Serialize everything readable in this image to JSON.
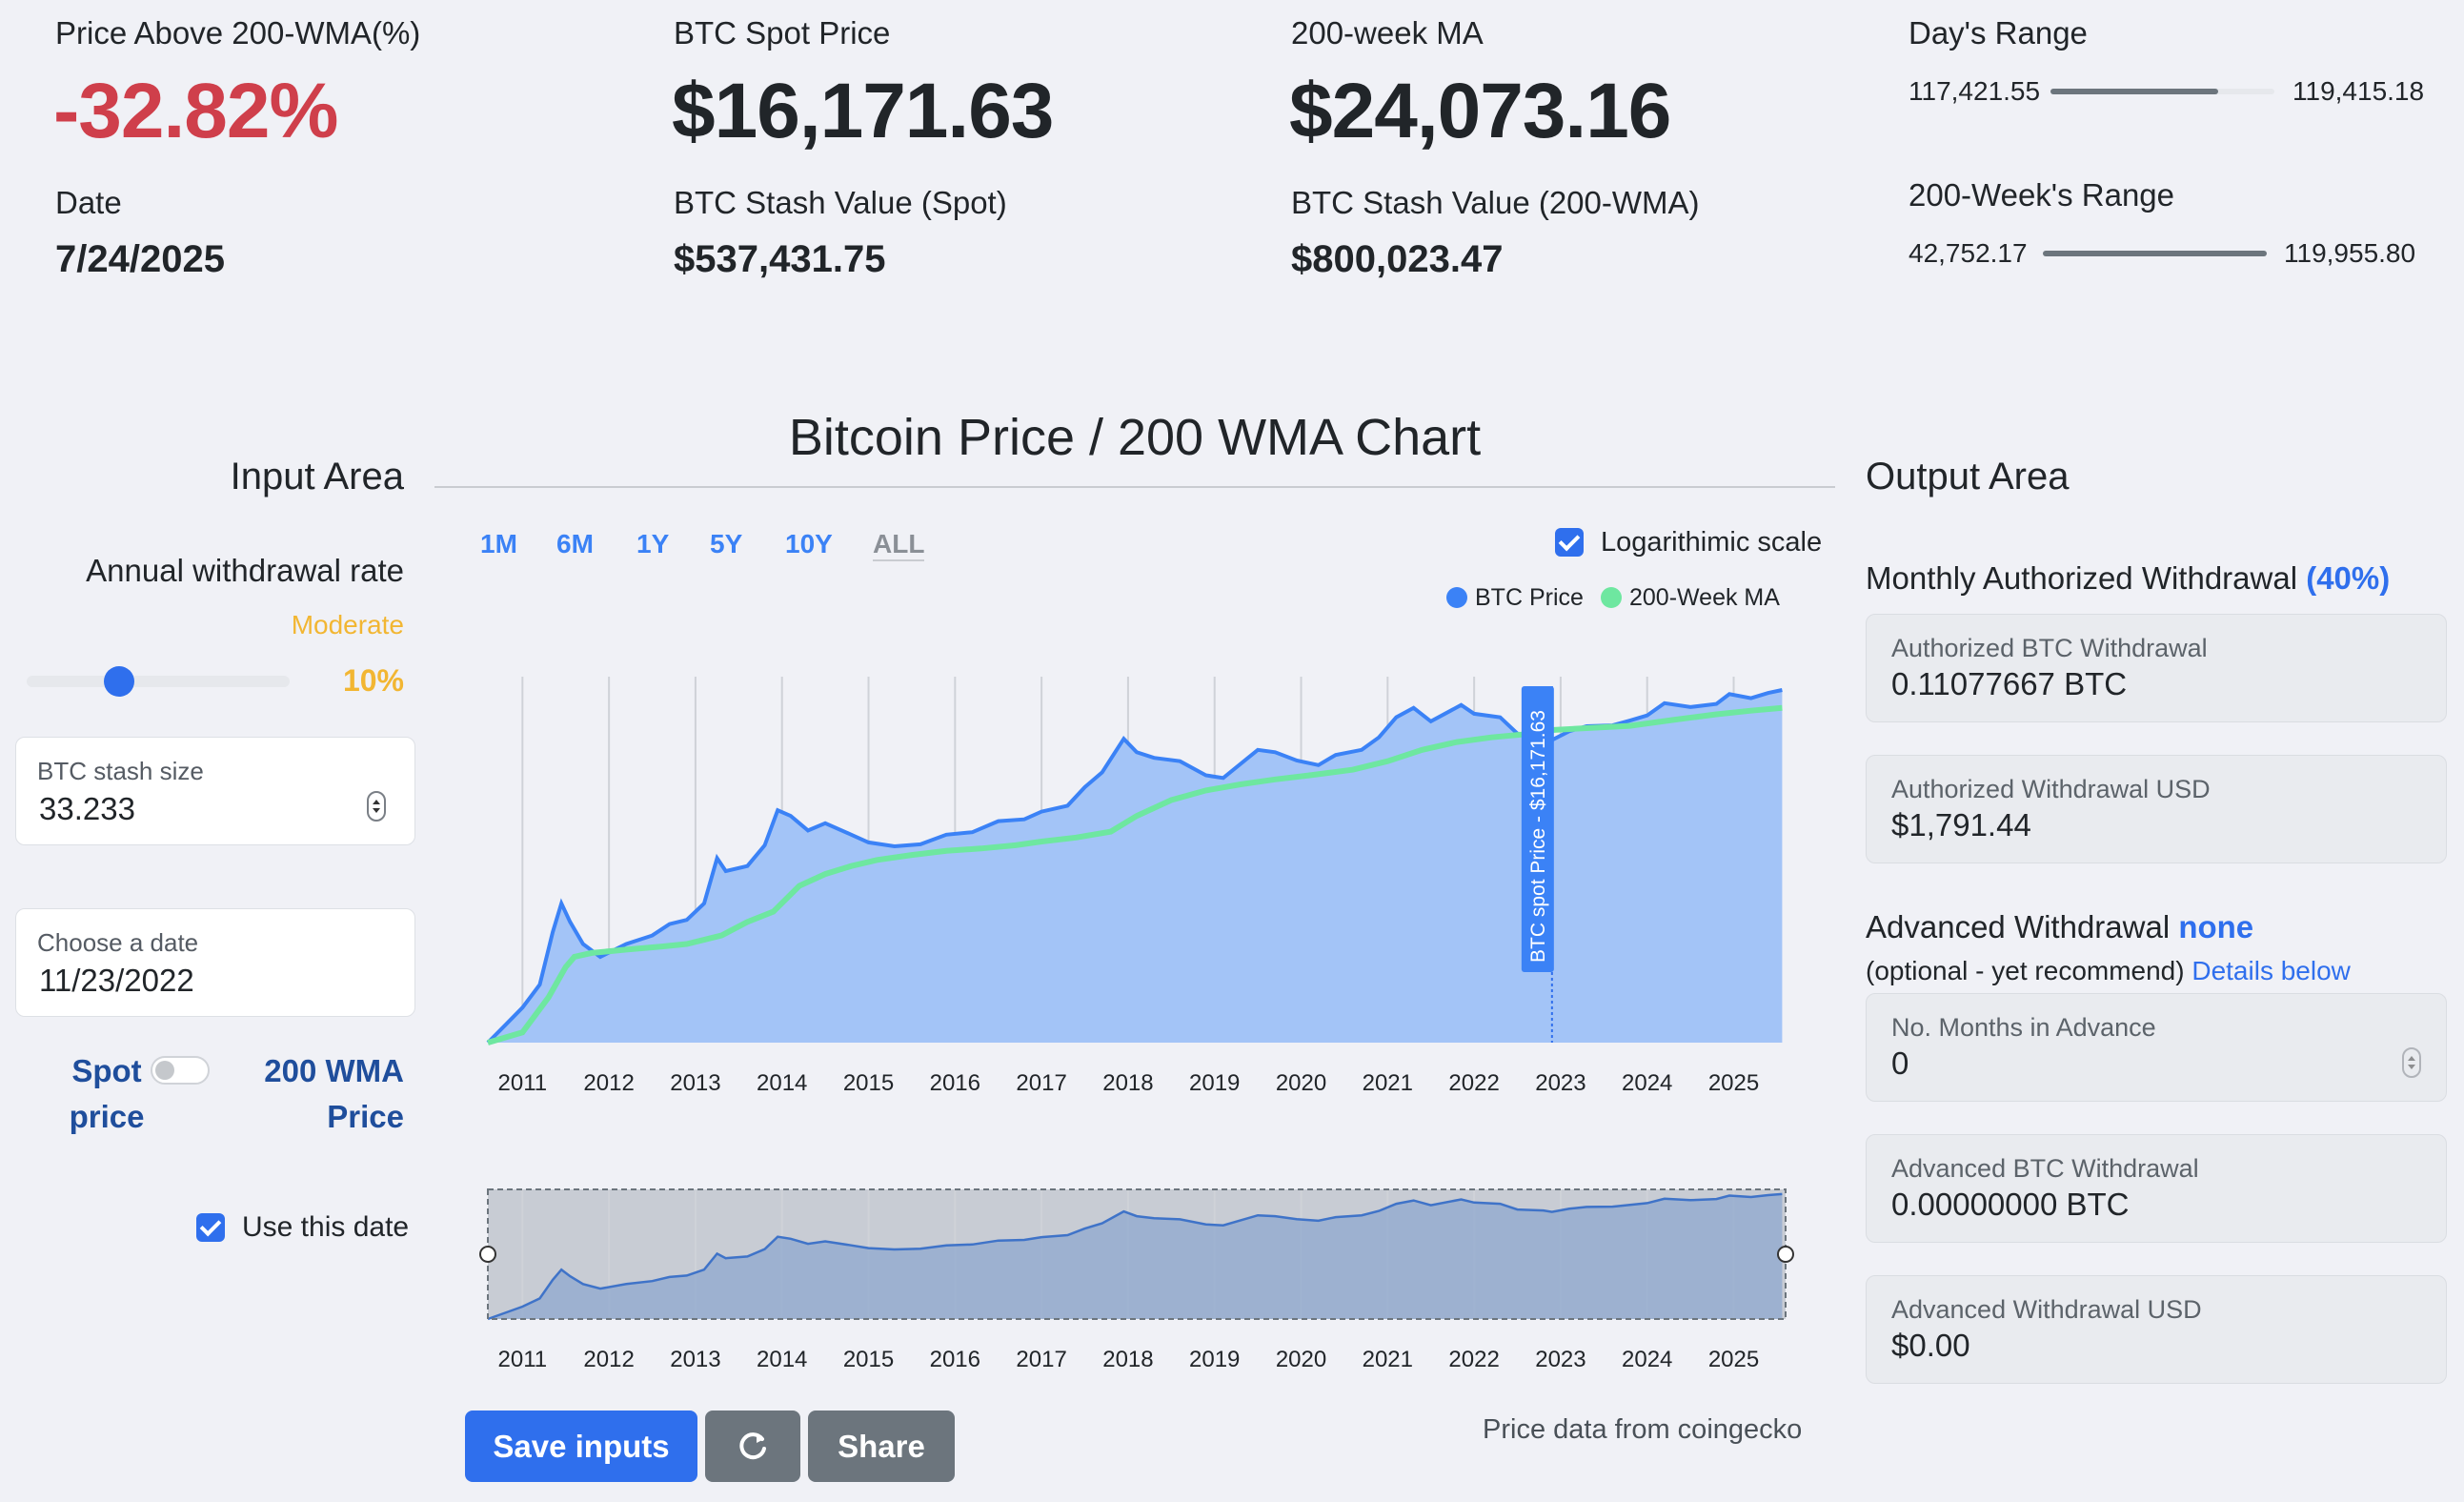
{
  "stats": {
    "price_above_label": "Price Above 200-WMA(%)",
    "price_above_value": "-32.82%",
    "date_label": "Date",
    "date_value": "7/24/2025",
    "spot_label": "BTC Spot Price",
    "spot_value": "$16,171.63",
    "stash_spot_label": "BTC Stash Value (Spot)",
    "stash_spot_value": "$537,431.75",
    "wma_label": "200-week MA",
    "wma_value": "$24,073.16",
    "stash_wma_label": "BTC Stash Value (200-WMA)",
    "stash_wma_value": "$800,023.47",
    "days_range_label": "Day's Range",
    "days_range_low": "117,421.55",
    "days_range_high": "119,415.18",
    "days_range_fill": 0.75,
    "week_range_label": "200-Week's Range",
    "week_range_low": "42,752.17",
    "week_range_high": "119,955.80",
    "week_range_fill": 1.0
  },
  "input_area": {
    "title": "Input Area",
    "withdrawal_rate_label": "Annual withdrawal rate",
    "risk_label": "Moderate",
    "rate_value": "10%",
    "slider_fraction": 0.35,
    "stash_label": "BTC stash size",
    "stash_value": "33.233",
    "date_label": "Choose a date",
    "date_value": "11/23/2022",
    "toggle_left": "Spot price",
    "toggle_right": "200 WMA Price",
    "use_date_label": "Use this date",
    "use_date_checked": true
  },
  "chart_section": {
    "title": "Bitcoin Price / 200 WMA Chart",
    "tabs": [
      "1M",
      "6M",
      "1Y",
      "5Y",
      "10Y",
      "ALL"
    ],
    "active_tab": "ALL",
    "log_scale_label": "Logarithimic scale",
    "log_scale_checked": true,
    "legend_btc": "BTC Price",
    "legend_wma": "200-Week MA",
    "marker_label": "BTC spot Price - $16,171.63",
    "attribution": "Price data from coingecko",
    "colors": {
      "btc": "#3b82f6",
      "btc_fill": "#a3c4f7",
      "wma": "#6ee7a0",
      "accent": "#2f6fed"
    }
  },
  "chart_data": {
    "type": "area",
    "x_ticks": [
      "2011",
      "2012",
      "2013",
      "2014",
      "2015",
      "2016",
      "2017",
      "2018",
      "2019",
      "2020",
      "2021",
      "2022",
      "2023",
      "2024",
      "2025"
    ],
    "xlim": [
      2010.6,
      2025.6
    ],
    "log_scale": true,
    "ylim": [
      0.1,
      200000
    ],
    "series": [
      {
        "name": "BTC Price",
        "points": [
          [
            2010.6,
            0.1
          ],
          [
            2010.8,
            0.2
          ],
          [
            2011.0,
            0.4
          ],
          [
            2011.2,
            1
          ],
          [
            2011.35,
            8
          ],
          [
            2011.45,
            25
          ],
          [
            2011.55,
            12
          ],
          [
            2011.7,
            5
          ],
          [
            2011.9,
            3
          ],
          [
            2012.2,
            5
          ],
          [
            2012.5,
            7
          ],
          [
            2012.7,
            11
          ],
          [
            2012.9,
            13
          ],
          [
            2013.1,
            25
          ],
          [
            2013.25,
            150
          ],
          [
            2013.35,
            90
          ],
          [
            2013.6,
            110
          ],
          [
            2013.8,
            250
          ],
          [
            2013.95,
            1000
          ],
          [
            2014.1,
            800
          ],
          [
            2014.3,
            450
          ],
          [
            2014.5,
            600
          ],
          [
            2014.8,
            380
          ],
          [
            2015.0,
            280
          ],
          [
            2015.3,
            240
          ],
          [
            2015.6,
            260
          ],
          [
            2015.9,
            380
          ],
          [
            2016.2,
            420
          ],
          [
            2016.5,
            650
          ],
          [
            2016.8,
            700
          ],
          [
            2017.0,
            950
          ],
          [
            2017.3,
            1200
          ],
          [
            2017.5,
            2500
          ],
          [
            2017.7,
            4500
          ],
          [
            2017.95,
            17000
          ],
          [
            2018.1,
            10000
          ],
          [
            2018.3,
            8000
          ],
          [
            2018.6,
            7000
          ],
          [
            2018.9,
            4000
          ],
          [
            2019.1,
            3600
          ],
          [
            2019.5,
            11000
          ],
          [
            2019.7,
            10000
          ],
          [
            2019.95,
            7200
          ],
          [
            2020.2,
            6000
          ],
          [
            2020.4,
            9000
          ],
          [
            2020.7,
            11000
          ],
          [
            2020.9,
            18000
          ],
          [
            2021.1,
            40000
          ],
          [
            2021.3,
            58000
          ],
          [
            2021.5,
            34000
          ],
          [
            2021.85,
            65000
          ],
          [
            2022.0,
            46000
          ],
          [
            2022.3,
            40000
          ],
          [
            2022.5,
            21000
          ],
          [
            2022.8,
            19000
          ],
          [
            2022.9,
            16200
          ],
          [
            2023.1,
            23000
          ],
          [
            2023.3,
            28000
          ],
          [
            2023.6,
            29000
          ],
          [
            2023.8,
            35000
          ],
          [
            2024.0,
            43000
          ],
          [
            2024.2,
            70000
          ],
          [
            2024.5,
            60000
          ],
          [
            2024.8,
            68000
          ],
          [
            2024.95,
            100000
          ],
          [
            2025.2,
            85000
          ],
          [
            2025.4,
            105000
          ],
          [
            2025.56,
            118000
          ]
        ]
      },
      {
        "name": "200-Week MA",
        "points": [
          [
            2010.6,
            0.1
          ],
          [
            2011.0,
            0.15
          ],
          [
            2011.3,
            0.6
          ],
          [
            2011.5,
            2
          ],
          [
            2011.6,
            3
          ],
          [
            2011.8,
            3.5
          ],
          [
            2012.2,
            4
          ],
          [
            2012.6,
            4.5
          ],
          [
            2012.9,
            5
          ],
          [
            2013.3,
            7
          ],
          [
            2013.6,
            12
          ],
          [
            2013.9,
            18
          ],
          [
            2014.2,
            50
          ],
          [
            2014.5,
            80
          ],
          [
            2014.8,
            110
          ],
          [
            2015.1,
            140
          ],
          [
            2015.5,
            170
          ],
          [
            2015.9,
            200
          ],
          [
            2016.3,
            220
          ],
          [
            2016.7,
            250
          ],
          [
            2017.0,
            290
          ],
          [
            2017.4,
            340
          ],
          [
            2017.8,
            430
          ],
          [
            2018.1,
            800
          ],
          [
            2018.5,
            1500
          ],
          [
            2018.9,
            2200
          ],
          [
            2019.3,
            2800
          ],
          [
            2019.7,
            3400
          ],
          [
            2020.1,
            4000
          ],
          [
            2020.6,
            5000
          ],
          [
            2021.0,
            7000
          ],
          [
            2021.4,
            11000
          ],
          [
            2021.8,
            15000
          ],
          [
            2022.2,
            18000
          ],
          [
            2022.6,
            20500
          ],
          [
            2022.9,
            24073
          ],
          [
            2023.3,
            26000
          ],
          [
            2023.8,
            28500
          ],
          [
            2024.3,
            36000
          ],
          [
            2024.8,
            45000
          ],
          [
            2025.2,
            52000
          ],
          [
            2025.56,
            58000
          ]
        ]
      }
    ],
    "marker": {
      "x": 2022.9,
      "label": "BTC spot Price - $16,171.63"
    }
  },
  "output_area": {
    "title": "Output Area",
    "monthly_label": "Monthly Authorized Withdrawal",
    "monthly_pct": "(40%)",
    "auth_btc_label": "Authorized BTC Withdrawal",
    "auth_btc_value": "0.11077667 BTC",
    "auth_usd_label": "Authorized Withdrawal USD",
    "auth_usd_value": "$1,791.44",
    "advanced_label": "Advanced Withdrawal",
    "advanced_value": "none",
    "optional_text": "(optional - yet recommend)",
    "details_link": "Details below",
    "months_label": "No. Months in Advance",
    "months_value": "0",
    "adv_btc_label": "Advanced BTC Withdrawal",
    "adv_btc_value": "0.00000000 BTC",
    "adv_usd_label": "Advanced Withdrawal USD",
    "adv_usd_value": "$0.00"
  },
  "buttons": {
    "save": "Save inputs",
    "refresh_icon": "refresh-icon",
    "share": "Share"
  }
}
